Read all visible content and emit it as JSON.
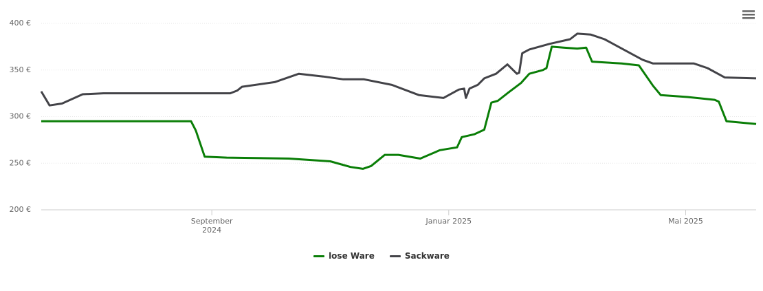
{
  "chart_data": {
    "type": "line",
    "xlim": [
      6.12,
      18.19
    ],
    "xticks": [
      {
        "value": 9,
        "label": "September 2024"
      },
      {
        "value": 13,
        "label": "Januar 2025"
      },
      {
        "value": 17,
        "label": "Mai 2025"
      }
    ],
    "ylim": [
      200,
      400
    ],
    "yticks": [
      {
        "value": 200,
        "label": "200 €"
      },
      {
        "value": 250,
        "label": "250 €"
      },
      {
        "value": 300,
        "label": "300 €"
      },
      {
        "value": 350,
        "label": "350 €"
      },
      {
        "value": 400,
        "label": "400 €"
      }
    ],
    "grid": true,
    "legend": "bottom",
    "series": [
      {
        "name": "lose Ware",
        "color": "#0a7e07",
        "x": [
          6.12,
          8.65,
          8.73,
          8.88,
          9.25,
          10.3,
          11.0,
          11.34,
          11.55,
          11.69,
          11.92,
          12.15,
          12.52,
          12.85,
          13.14,
          13.22,
          13.43,
          13.6,
          13.72,
          13.83,
          14.01,
          14.22,
          14.36,
          14.59,
          14.65,
          14.74,
          14.94,
          15.17,
          15.32,
          15.42,
          15.92,
          16.21,
          16.45,
          16.58,
          17.03,
          17.49,
          17.56,
          17.69,
          18.19
        ],
        "values": [
          295,
          295,
          285,
          257,
          256,
          255,
          252,
          246,
          244,
          247,
          259,
          259,
          255,
          264,
          267,
          278,
          281,
          286,
          315,
          317,
          326,
          336,
          346,
          350,
          352,
          375,
          374,
          373,
          374,
          359,
          357,
          355,
          333,
          323,
          321,
          318,
          316,
          295,
          292
        ]
      },
      {
        "name": "Sackware",
        "color": "#434348",
        "x": [
          6.12,
          6.26,
          6.47,
          6.82,
          7.17,
          9.31,
          9.43,
          9.51,
          10.06,
          10.47,
          10.88,
          11.22,
          11.57,
          12.04,
          12.5,
          12.91,
          13.17,
          13.26,
          13.29,
          13.35,
          13.49,
          13.6,
          13.8,
          13.99,
          14.15,
          14.19,
          14.24,
          14.36,
          14.7,
          15.05,
          15.17,
          15.4,
          15.63,
          15.98,
          16.27,
          16.45,
          17.14,
          17.37,
          17.66,
          18.19
        ],
        "values": [
          327,
          312,
          314,
          324,
          325,
          325,
          328,
          332,
          337,
          346,
          343,
          340,
          340,
          334,
          323,
          320,
          329,
          330,
          320,
          330,
          334,
          341,
          346,
          356,
          346,
          347,
          368,
          372,
          378,
          383,
          389,
          388,
          383,
          371,
          361,
          357,
          357,
          352,
          342,
          341
        ]
      }
    ]
  }
}
